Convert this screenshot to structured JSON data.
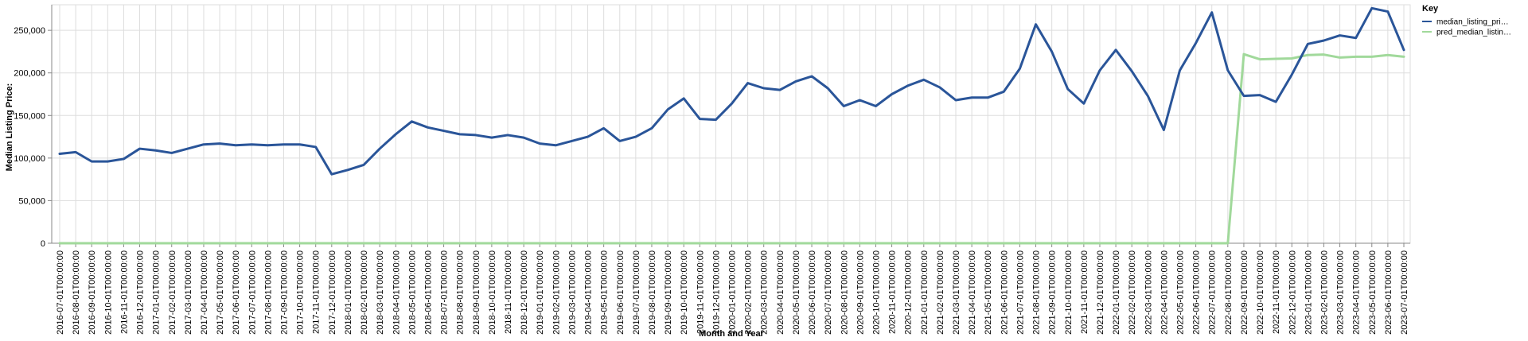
{
  "chart_data": {
    "type": "line",
    "xlabel": "Month and Year",
    "ylabel": "Median Listing Price:",
    "ylim": [
      0,
      280000
    ],
    "yticks": [
      0,
      50000,
      100000,
      150000,
      200000,
      250000
    ],
    "ytick_labels": [
      "0",
      "50,000",
      "100,000",
      "150,000",
      "200,000",
      "250,000"
    ],
    "grid": true,
    "legend": {
      "title": "Key",
      "placement": "top-right"
    },
    "x": [
      "2016-07-01T00:00:00",
      "2016-08-01T00:00:00",
      "2016-09-01T00:00:00",
      "2016-10-01T00:00:00",
      "2016-11-01T00:00:00",
      "2016-12-01T00:00:00",
      "2017-01-01T00:00:00",
      "2017-02-01T00:00:00",
      "2017-03-01T00:00:00",
      "2017-04-01T00:00:00",
      "2017-05-01T00:00:00",
      "2017-06-01T00:00:00",
      "2017-07-01T00:00:00",
      "2017-08-01T00:00:00",
      "2017-09-01T00:00:00",
      "2017-10-01T00:00:00",
      "2017-11-01T00:00:00",
      "2017-12-01T00:00:00",
      "2018-01-01T00:00:00",
      "2018-02-01T00:00:00",
      "2018-03-01T00:00:00",
      "2018-04-01T00:00:00",
      "2018-05-01T00:00:00",
      "2018-06-01T00:00:00",
      "2018-07-01T00:00:00",
      "2018-08-01T00:00:00",
      "2018-09-01T00:00:00",
      "2018-10-01T00:00:00",
      "2018-11-01T00:00:00",
      "2018-12-01T00:00:00",
      "2019-01-01T00:00:00",
      "2019-02-01T00:00:00",
      "2019-03-01T00:00:00",
      "2019-04-01T00:00:00",
      "2019-05-01T00:00:00",
      "2019-06-01T00:00:00",
      "2019-07-01T00:00:00",
      "2019-08-01T00:00:00",
      "2019-09-01T00:00:00",
      "2019-10-01T00:00:00",
      "2019-11-01T00:00:00",
      "2019-12-01T00:00:00",
      "2020-01-01T00:00:00",
      "2020-02-01T00:00:00",
      "2020-03-01T00:00:00",
      "2020-04-01T00:00:00",
      "2020-05-01T00:00:00",
      "2020-06-01T00:00:00",
      "2020-07-01T00:00:00",
      "2020-08-01T00:00:00",
      "2020-09-01T00:00:00",
      "2020-10-01T00:00:00",
      "2020-11-01T00:00:00",
      "2020-12-01T00:00:00",
      "2021-01-01T00:00:00",
      "2021-02-01T00:00:00",
      "2021-03-01T00:00:00",
      "2021-04-01T00:00:00",
      "2021-05-01T00:00:00",
      "2021-06-01T00:00:00",
      "2021-07-01T00:00:00",
      "2021-08-01T00:00:00",
      "2021-09-01T00:00:00",
      "2021-10-01T00:00:00",
      "2021-11-01T00:00:00",
      "2021-12-01T00:00:00",
      "2022-01-01T00:00:00",
      "2022-02-01T00:00:00",
      "2022-03-01T00:00:00",
      "2022-04-01T00:00:00",
      "2022-05-01T00:00:00",
      "2022-06-01T00:00:00",
      "2022-07-01T00:00:00",
      "2022-08-01T00:00:00",
      "2022-09-01T00:00:00",
      "2022-10-01T00:00:00",
      "2022-11-01T00:00:00",
      "2022-12-01T00:00:00",
      "2023-01-01T00:00:00",
      "2023-02-01T00:00:00",
      "2023-03-01T00:00:00",
      "2023-04-01T00:00:00",
      "2023-05-01T00:00:00",
      "2023-06-01T00:00:00",
      "2023-07-01T00:00:00"
    ],
    "series": [
      {
        "name": "median_listing_pri…",
        "color": "#2a5599",
        "values": [
          105000,
          107000,
          96000,
          96000,
          99000,
          111000,
          109000,
          106000,
          111000,
          116000,
          117000,
          115000,
          116000,
          115000,
          116000,
          116000,
          113000,
          81000,
          86000,
          92000,
          111000,
          128000,
          143000,
          136000,
          132000,
          128000,
          127000,
          124000,
          127000,
          124000,
          117000,
          115000,
          120000,
          125000,
          135000,
          120000,
          125000,
          135000,
          157000,
          170000,
          146000,
          145000,
          164000,
          188000,
          182000,
          180000,
          190000,
          196000,
          182000,
          161000,
          168000,
          161000,
          175000,
          185000,
          192000,
          183000,
          168000,
          171000,
          171000,
          178000,
          205000,
          257000,
          225000,
          181000,
          164000,
          203000,
          227000,
          202000,
          173000,
          133000,
          203000,
          235000,
          271000,
          203000,
          173000,
          174000,
          166000,
          198000,
          234000,
          238000,
          244000,
          241000,
          276000,
          272000,
          227000
        ]
      },
      {
        "name": "pred_median_listin…",
        "color": "#a1d99b",
        "values": [
          0,
          0,
          0,
          0,
          0,
          0,
          0,
          0,
          0,
          0,
          0,
          0,
          0,
          0,
          0,
          0,
          0,
          0,
          0,
          0,
          0,
          0,
          0,
          0,
          0,
          0,
          0,
          0,
          0,
          0,
          0,
          0,
          0,
          0,
          0,
          0,
          0,
          0,
          0,
          0,
          0,
          0,
          0,
          0,
          0,
          0,
          0,
          0,
          0,
          0,
          0,
          0,
          0,
          0,
          0,
          0,
          0,
          0,
          0,
          0,
          0,
          0,
          0,
          0,
          0,
          0,
          0,
          0,
          0,
          0,
          0,
          0,
          0,
          0,
          222000,
          216000,
          216500,
          217000,
          221000,
          221500,
          218000,
          219000,
          219000,
          221000,
          219000
        ]
      }
    ]
  }
}
